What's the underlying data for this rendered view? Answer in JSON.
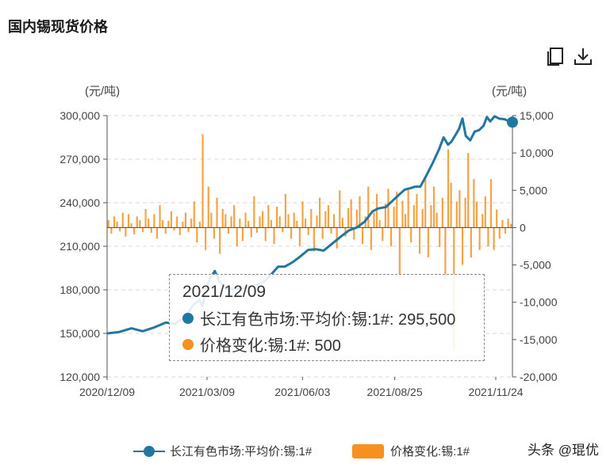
{
  "page": {
    "title": "国内锡现货价格"
  },
  "toolbar": {
    "copy_icon": "copy-icon",
    "download_icon": "download-icon"
  },
  "chart_data": {
    "type": "line+bar",
    "left_unit": "(元/吨)",
    "right_unit": "(元/吨)",
    "left_ticks": [
      "300,000",
      "270,000",
      "240,000",
      "210,000",
      "180,000",
      "150,000",
      "120,000"
    ],
    "right_ticks": [
      "15,000",
      "10,000",
      "5,000",
      "0",
      "-5,000",
      "-10,000",
      "-15,000",
      "-20,000"
    ],
    "ylim_left": [
      120000,
      300000
    ],
    "ylim_right": [
      -20000,
      15000
    ],
    "x_ticks": [
      "2020/12/09",
      "2021/03/09",
      "2021/06/03",
      "2021/08/25",
      "2021/11/24"
    ],
    "xlim": [
      "2020/12/09",
      "2021/12/09"
    ],
    "grid": true,
    "legend_position": "bottom",
    "series": [
      {
        "name": "长江有色市场:平均价:锡:1#",
        "type": "line",
        "axis": "left",
        "color": "#21779f",
        "points": [
          [
            "2020/12/09",
            150000
          ],
          [
            "2020/12/20",
            151000
          ],
          [
            "2020/12/31",
            153500
          ],
          [
            "2021/01/10",
            151500
          ],
          [
            "2021/01/20",
            154000
          ],
          [
            "2021/01/31",
            157500
          ],
          [
            "2021/02/08",
            156500
          ],
          [
            "2021/02/18",
            162000
          ],
          [
            "2021/02/25",
            170000
          ],
          [
            "2021/03/02",
            173000
          ],
          [
            "2021/03/05",
            169000
          ],
          [
            "2021/03/09",
            183000
          ],
          [
            "2021/03/12",
            188000
          ],
          [
            "2021/03/16",
            193000
          ],
          [
            "2021/03/20",
            186000
          ],
          [
            "2021/03/26",
            181000
          ],
          [
            "2021/04/02",
            180500
          ],
          [
            "2021/04/10",
            181000
          ],
          [
            "2021/04/20",
            183000
          ],
          [
            "2021/04/28",
            185000
          ],
          [
            "2021/05/05",
            190000
          ],
          [
            "2021/05/12",
            196000
          ],
          [
            "2021/05/18",
            196000
          ],
          [
            "2021/05/25",
            199000
          ],
          [
            "2021/06/01",
            203000
          ],
          [
            "2021/06/08",
            207500
          ],
          [
            "2021/06/15",
            208000
          ],
          [
            "2021/06/22",
            207000
          ],
          [
            "2021/06/30",
            212000
          ],
          [
            "2021/07/08",
            217000
          ],
          [
            "2021/07/15",
            221000
          ],
          [
            "2021/07/22",
            223000
          ],
          [
            "2021/07/29",
            227000
          ],
          [
            "2021/08/05",
            234000
          ],
          [
            "2021/08/10",
            236000
          ],
          [
            "2021/08/17",
            237000
          ],
          [
            "2021/08/24",
            242000
          ],
          [
            "2021/08/31",
            247000
          ],
          [
            "2021/09/03",
            249000
          ],
          [
            "2021/09/08",
            250000
          ],
          [
            "2021/09/12",
            251000
          ],
          [
            "2021/09/17",
            251000
          ],
          [
            "2021/09/22",
            258000
          ],
          [
            "2021/09/28",
            267000
          ],
          [
            "2021/10/04",
            277000
          ],
          [
            "2021/10/08",
            285000
          ],
          [
            "2021/10/12",
            280000
          ],
          [
            "2021/10/15",
            282000
          ],
          [
            "2021/10/19",
            287000
          ],
          [
            "2021/10/22",
            291000
          ],
          [
            "2021/10/25",
            298000
          ],
          [
            "2021/10/28",
            286000
          ],
          [
            "2021/11/01",
            283000
          ],
          [
            "2021/11/05",
            289000
          ],
          [
            "2021/11/09",
            290000
          ],
          [
            "2021/11/13",
            293000
          ],
          [
            "2021/11/16",
            299000
          ],
          [
            "2021/11/19",
            296000
          ],
          [
            "2021/11/23",
            299500
          ],
          [
            "2021/11/27",
            298000
          ],
          [
            "2021/12/02",
            297500
          ],
          [
            "2021/12/06",
            296000
          ],
          [
            "2021/12/09",
            295500
          ]
        ]
      },
      {
        "name": "价格变化:锡:1#",
        "type": "bar",
        "axis": "right",
        "color": "#f7901e",
        "values": [
          1000,
          -800,
          1500,
          800,
          -500,
          2000,
          -1200,
          1800,
          600,
          -900,
          1500,
          1000,
          -600,
          2500,
          1200,
          -700,
          1800,
          -1500,
          3000,
          1000,
          -800,
          900,
          2200,
          -400,
          1500,
          -1000,
          800,
          2000,
          -600,
          1200,
          3500,
          -2000,
          800,
          12500,
          -3000,
          5500,
          2000,
          -1500,
          4000,
          -3500,
          2500,
          1800,
          -800,
          1500,
          3000,
          -2500,
          1200,
          -1800,
          2000,
          900,
          -1300,
          4200,
          -700,
          1500,
          2200,
          -1800,
          3000,
          1000,
          -2200,
          2800,
          1500,
          -600,
          4500,
          1800,
          -1500,
          2000,
          900,
          -2500,
          3500,
          1200,
          -1000,
          2500,
          -3200,
          1600,
          4000,
          -1500,
          2200,
          3000,
          -800,
          1800,
          -2800,
          5000,
          1300,
          -1200,
          2600,
          3800,
          -1600,
          2400,
          4200,
          -2200,
          1500,
          5500,
          -3000,
          2000,
          4500,
          1000,
          -1800,
          3200,
          5200,
          -2500,
          2800,
          4800,
          -6500,
          3600,
          1800,
          5000,
          -2000,
          3000,
          4500,
          -3500,
          2500,
          6500,
          -4000,
          3000,
          5500,
          2000,
          -2600,
          4000,
          -7000,
          10500,
          6000,
          -16500,
          3500,
          5000,
          -5000,
          4000,
          10000,
          -4000,
          6500,
          3500,
          -3000,
          1800,
          4200,
          -2500,
          6500,
          -3000,
          2400,
          -1500,
          1000,
          -800,
          1200,
          500
        ]
      }
    ]
  },
  "tooltip": {
    "date": "2021/12/09",
    "line_label": "长江有色市场:平均价:锡:1#: 295,500",
    "bar_label": "价格变化:锡:1#: 500"
  },
  "legend": {
    "line_label": "长江有色市场:平均价:锡:1#",
    "bar_label": "价格变化:锡:1#"
  },
  "watermark": "头条 @琨优"
}
